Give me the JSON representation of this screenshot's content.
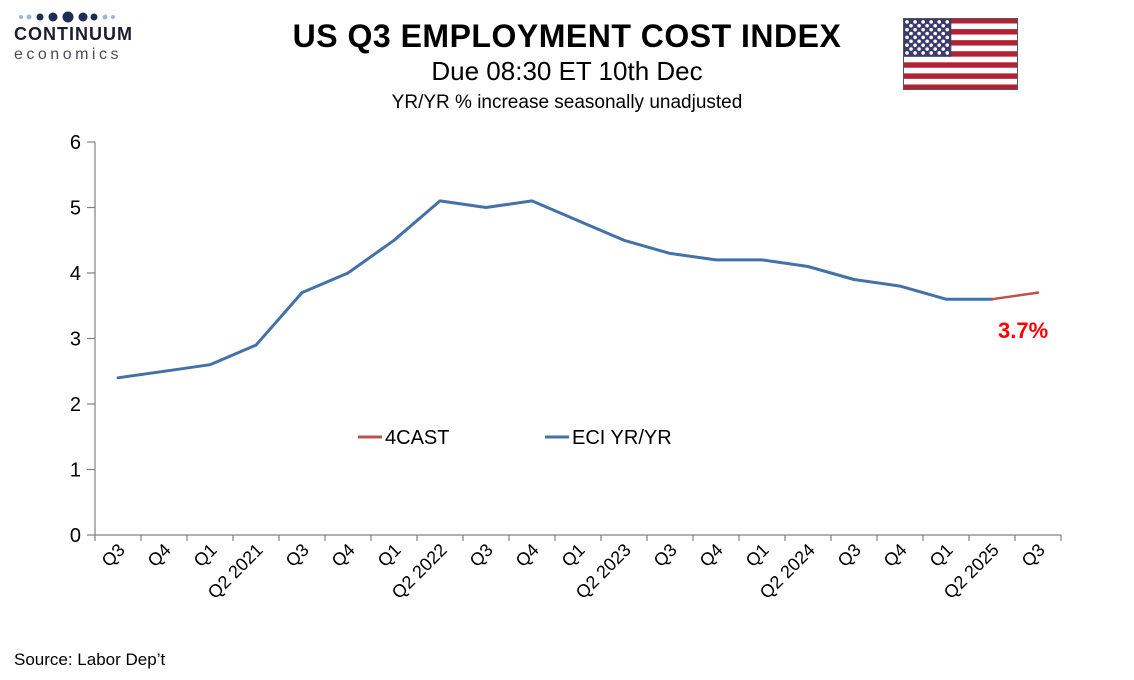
{
  "header": {
    "logo": {
      "line1": "CONTINUUM",
      "line2": "economics"
    },
    "title": "US Q3 EMPLOYMENT COST INDEX",
    "subtitle": "Due 08:30 ET 10th Dec",
    "subsubtitle": "YR/YR % increase seasonally unadjusted"
  },
  "chart_data": {
    "type": "line",
    "title": "US Q3 EMPLOYMENT COST INDEX",
    "subtitle": "Due 08:30 ET 10th Dec",
    "ylabel": "YR/YR % increase seasonally unadjusted",
    "categories": [
      "Q3",
      "Q4",
      "Q1",
      "Q2 2021",
      "Q3",
      "Q4",
      "Q1",
      "Q2 2022",
      "Q3",
      "Q4",
      "Q1",
      "Q2 2023",
      "Q3",
      "Q4",
      "Q1",
      "Q2 2024",
      "Q3",
      "Q4",
      "Q1",
      "Q2 2025",
      "Q3"
    ],
    "series": [
      {
        "name": "4CAST",
        "color": "#C0504D",
        "values": [
          null,
          null,
          null,
          null,
          null,
          null,
          null,
          null,
          null,
          null,
          null,
          null,
          null,
          null,
          null,
          null,
          null,
          null,
          null,
          3.6,
          3.7
        ]
      },
      {
        "name": "ECI YR/YR",
        "color": "#4472A8",
        "values": [
          2.4,
          2.5,
          2.6,
          2.9,
          3.7,
          4.0,
          4.5,
          5.1,
          5.0,
          5.1,
          4.8,
          4.5,
          4.3,
          4.2,
          4.2,
          4.1,
          3.9,
          3.8,
          3.6,
          3.6,
          null
        ]
      }
    ],
    "ylim": [
      0,
      6
    ],
    "yticks": [
      0,
      1,
      2,
      3,
      4,
      5,
      6
    ],
    "grid": false,
    "legend": {
      "position": "inside-center",
      "items": [
        {
          "label": "4CAST",
          "color": "#C0504D"
        },
        {
          "label": "ECI YR/YR",
          "color": "#4472A8"
        }
      ]
    },
    "annotation": {
      "text": "3.7%",
      "color": "#FF0000",
      "x_index": 20,
      "y_value": 3.7
    }
  },
  "icons": {
    "us_flag": {
      "red": "#B22234",
      "blue": "#3C3B6E",
      "white": "#FFFFFF",
      "border": "#555555"
    },
    "logo_dots": {
      "dark": "#1e2d55",
      "light": "#9db8d8"
    }
  },
  "footer": {
    "source": "Source: Labor Dep’t"
  }
}
